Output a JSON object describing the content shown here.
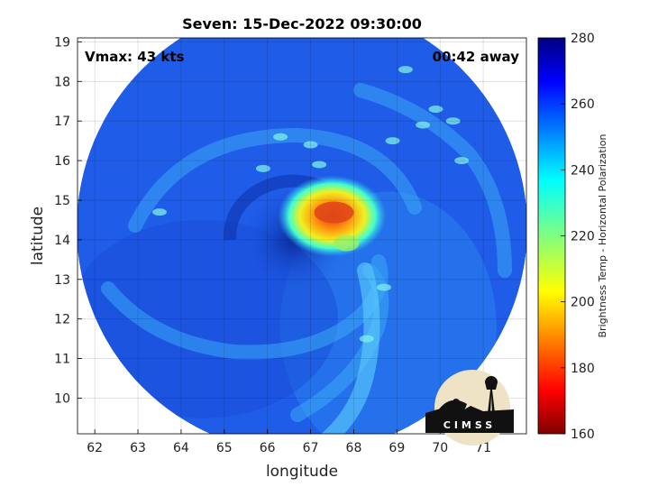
{
  "chart_data": {
    "type": "heatmap",
    "title": "Seven: 15-Dec-2022 09:30:00",
    "xlabel": "longitude",
    "ylabel": "latitude",
    "xlim": [
      61.6,
      72.0
    ],
    "ylim": [
      9.1,
      19.1
    ],
    "xticks": [
      "62",
      "63",
      "64",
      "65",
      "66",
      "67",
      "68",
      "69",
      "70",
      "71"
    ],
    "yticks": [
      "10",
      "11",
      "12",
      "13",
      "14",
      "15",
      "16",
      "17",
      "18",
      "19"
    ],
    "grid": true,
    "annotations": {
      "vmax": "Vmax: 43 kts",
      "time_away": "00:42 away"
    },
    "storm_center": {
      "lon": 66.6,
      "lat": 14.0
    },
    "swath_center": {
      "lon": 66.8,
      "lat": 14.3
    },
    "colorbar": {
      "label": "Brightness Temp - Horizontal Polarization",
      "range": [
        160,
        280
      ],
      "ticks": [
        "160",
        "180",
        "200",
        "220",
        "240",
        "260",
        "280"
      ],
      "colormap": "jet"
    },
    "features": [
      {
        "name": "cold convective core",
        "lon": 67.5,
        "lat": 14.6,
        "tb_min": 185
      },
      {
        "name": "spiral band south",
        "lon": 68.0,
        "lat": 12.5,
        "tb": 245
      },
      {
        "name": "background ocean",
        "tb": 258
      }
    ]
  },
  "logo": {
    "text": "CIMSS"
  },
  "colors": {
    "background_ocean": "#1e5ae6",
    "axes_frame": "#000000"
  }
}
